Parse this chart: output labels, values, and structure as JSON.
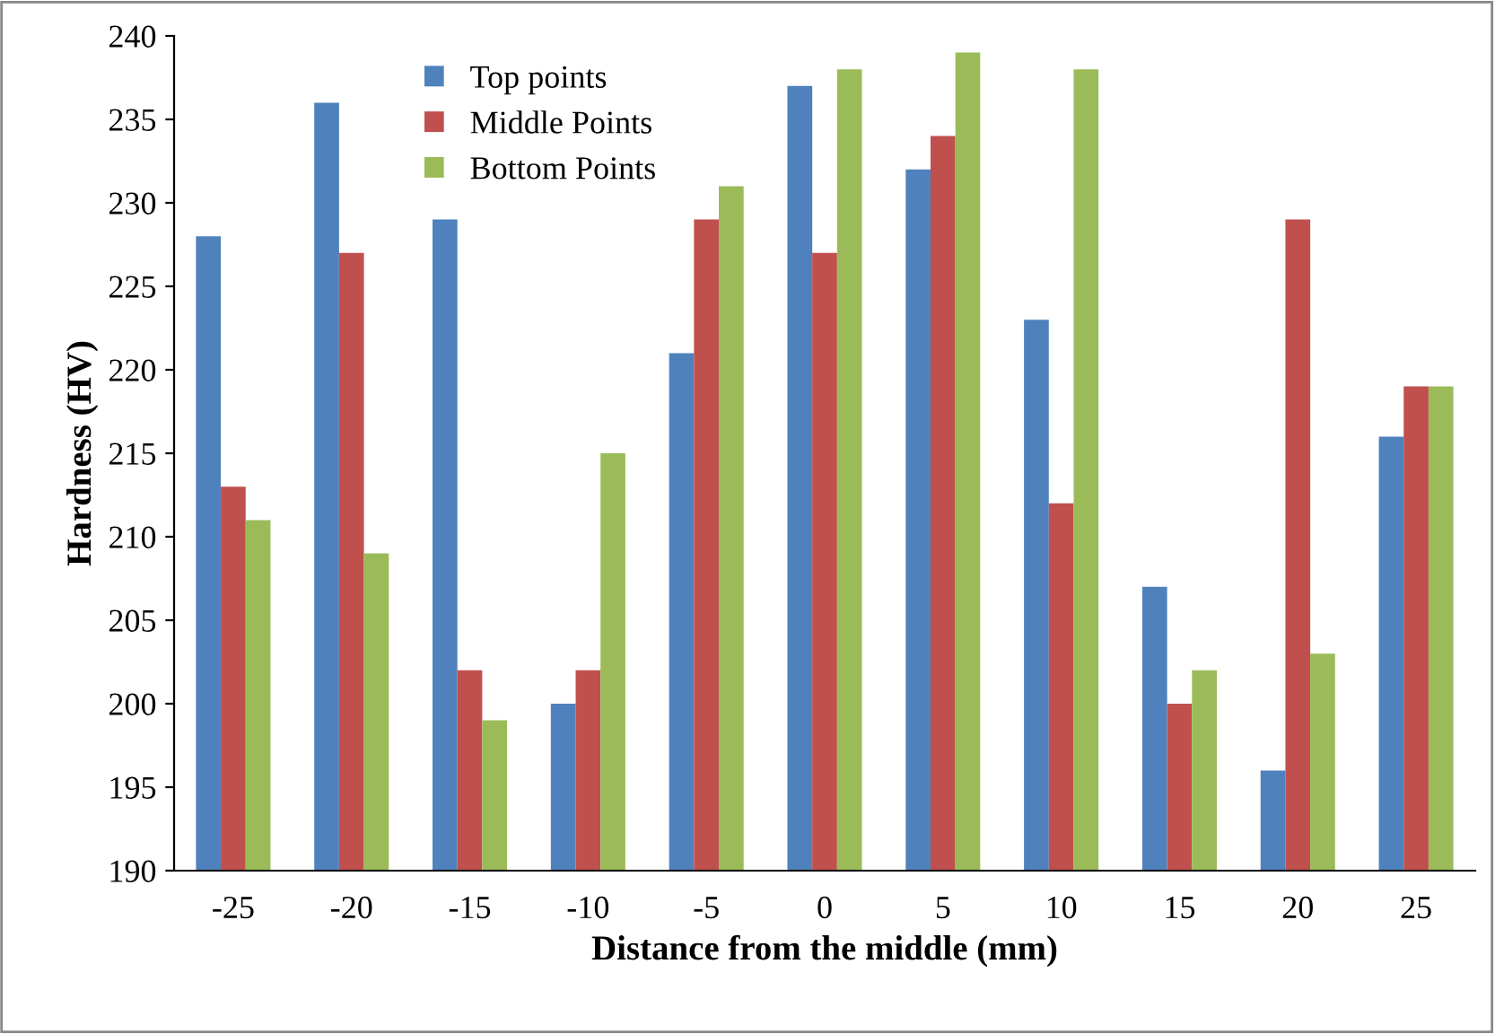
{
  "chart_data": {
    "type": "bar",
    "xlabel": "Distance from the middle (mm)",
    "ylabel": "Hardness (HV)",
    "categories": [
      "-25",
      "-20",
      "-15",
      "-10",
      "-5",
      "0",
      "5",
      "10",
      "15",
      "20",
      "25"
    ],
    "series": [
      {
        "name": "Top points",
        "color": "#4f81bd",
        "values": [
          228,
          236,
          229,
          200,
          221,
          237,
          232,
          223,
          207,
          196,
          216
        ]
      },
      {
        "name": "Middle Points",
        "color": "#c0504d",
        "values": [
          213,
          227,
          202,
          202,
          229,
          227,
          234,
          212,
          200,
          229,
          219
        ]
      },
      {
        "name": "Bottom Points",
        "color": "#9bbb59",
        "values": [
          211,
          209,
          199,
          215,
          231,
          238,
          239,
          238,
          202,
          203,
          219
        ]
      }
    ],
    "ylim": [
      190,
      240
    ],
    "yticks": [
      190,
      195,
      200,
      205,
      210,
      215,
      220,
      225,
      230,
      235,
      240
    ],
    "grid": false,
    "legend": "top left"
  }
}
